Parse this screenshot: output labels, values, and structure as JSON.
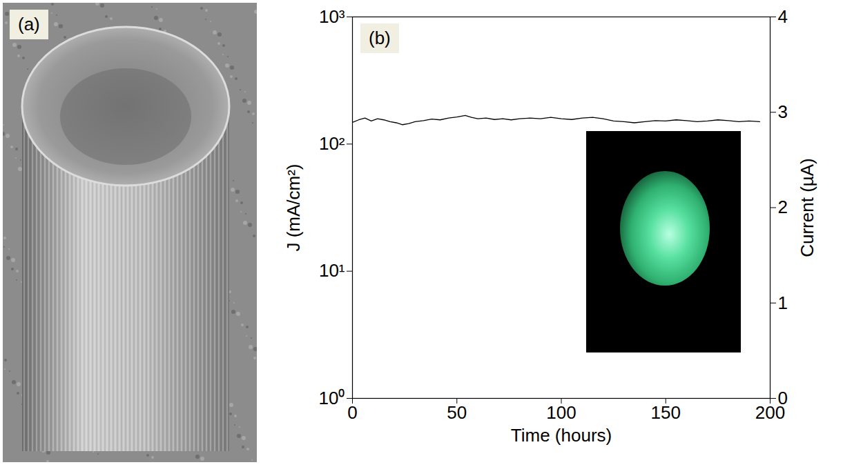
{
  "chart_data": [
    {
      "type": "image",
      "panel_label": "(a)"
    },
    {
      "type": "line",
      "panel_label": "(b)",
      "xlabel": "Time (hours)",
      "ylabel": "J (mA/cm²)",
      "y2label": "Current (µA)",
      "xlim": [
        0,
        200
      ],
      "xticks": [
        0,
        50,
        100,
        150,
        200
      ],
      "ylim": [
        1,
        1000
      ],
      "yticks": [
        {
          "value": 1,
          "label": "10⁰"
        },
        {
          "value": 10,
          "label": "10¹"
        },
        {
          "value": 100,
          "label": "10²"
        },
        {
          "value": 1000,
          "label": "10³"
        }
      ],
      "y2lim": [
        0,
        4
      ],
      "y2ticks": [
        0,
        1,
        2,
        3,
        4
      ],
      "log": "y",
      "grid": false,
      "color": "#000000",
      "x": [
        0,
        3,
        6,
        9,
        12,
        15,
        18,
        21,
        24,
        27,
        30,
        34,
        38,
        42,
        46,
        50,
        54,
        57,
        60,
        64,
        68,
        72,
        76,
        80,
        85,
        90,
        95,
        100,
        105,
        110,
        115,
        120,
        125,
        130,
        135,
        140,
        145,
        150,
        155,
        160,
        165,
        170,
        175,
        180,
        185,
        190,
        195
      ],
      "values": [
        148,
        155,
        160,
        152,
        158,
        155,
        150,
        147,
        142,
        145,
        150,
        153,
        157,
        155,
        160,
        163,
        168,
        162,
        158,
        160,
        156,
        158,
        155,
        158,
        160,
        158,
        162,
        158,
        156,
        160,
        162,
        158,
        152,
        150,
        147,
        150,
        153,
        152,
        155,
        153,
        150,
        152,
        155,
        153,
        150,
        152,
        150
      ]
    }
  ]
}
